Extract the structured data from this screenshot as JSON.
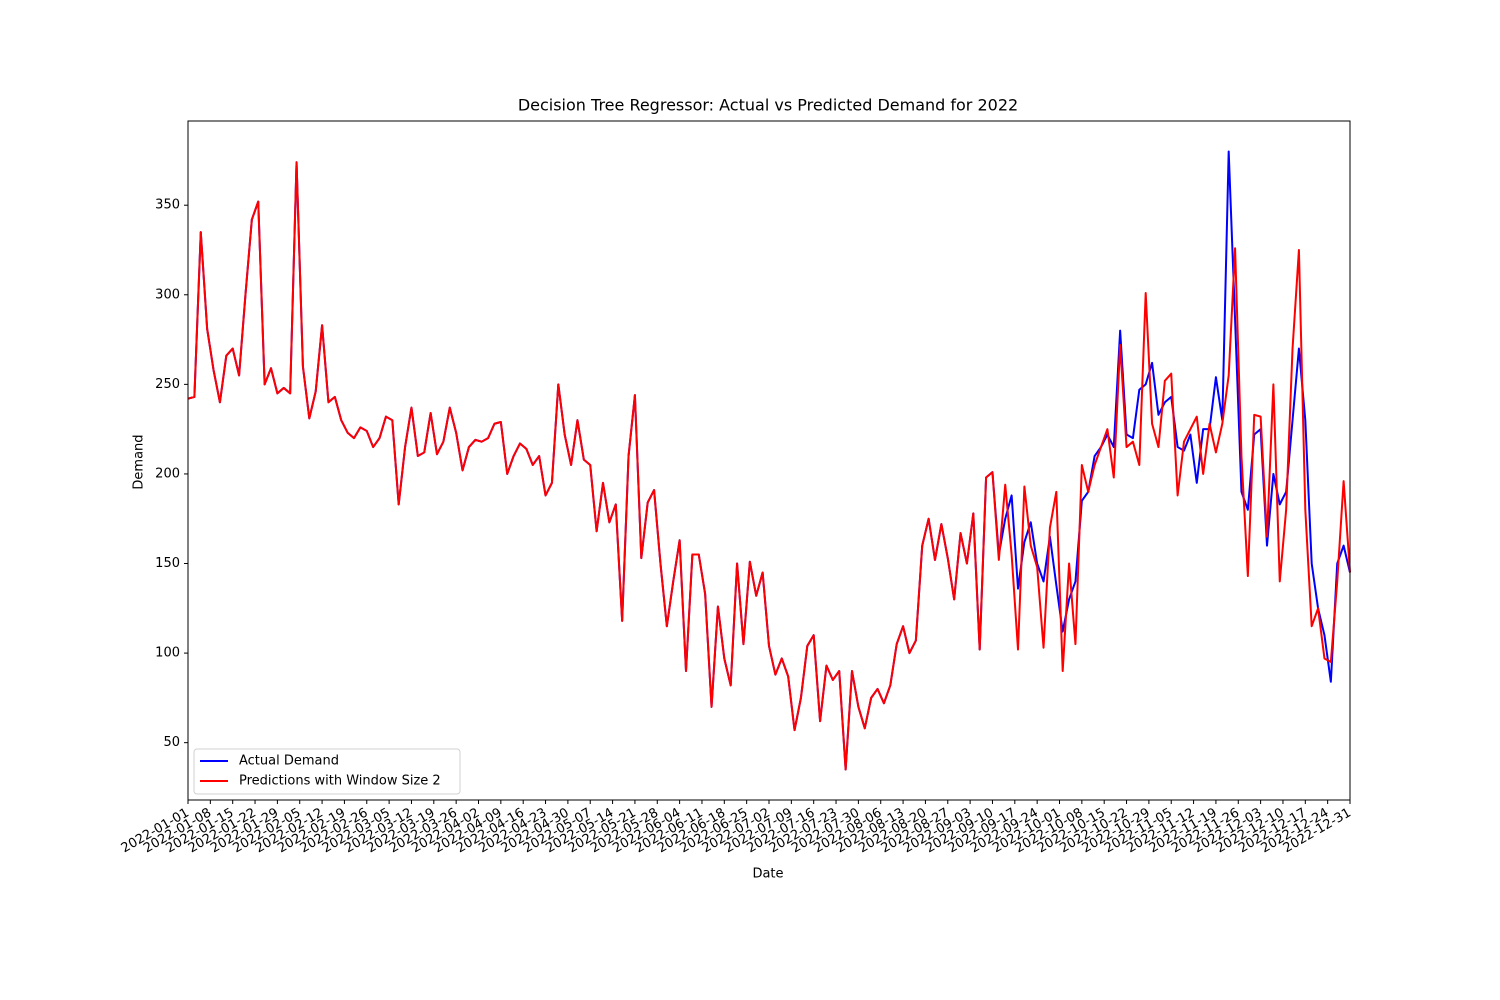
{
  "chart_data": {
    "type": "line",
    "title": "Decision Tree Regressor: Actual vs Predicted Demand for 2022",
    "x_label": "Date",
    "y_label": "Demand",
    "x": [
      "2022-01-01",
      "2022-01-03",
      "2022-01-05",
      "2022-01-07",
      "2022-01-09",
      "2022-01-11",
      "2022-01-13",
      "2022-01-15",
      "2022-01-17",
      "2022-01-19",
      "2022-01-21",
      "2022-01-23",
      "2022-01-25",
      "2022-01-27",
      "2022-01-29",
      "2022-01-31",
      "2022-02-02",
      "2022-02-04",
      "2022-02-06",
      "2022-02-08",
      "2022-02-10",
      "2022-02-12",
      "2022-02-14",
      "2022-02-16",
      "2022-02-18",
      "2022-02-20",
      "2022-02-22",
      "2022-02-24",
      "2022-02-26",
      "2022-02-28",
      "2022-03-02",
      "2022-03-04",
      "2022-03-06",
      "2022-03-08",
      "2022-03-10",
      "2022-03-12",
      "2022-03-14",
      "2022-03-16",
      "2022-03-18",
      "2022-03-20",
      "2022-03-22",
      "2022-03-24",
      "2022-03-26",
      "2022-03-28",
      "2022-03-30",
      "2022-04-01",
      "2022-04-03",
      "2022-04-05",
      "2022-04-07",
      "2022-04-09",
      "2022-04-11",
      "2022-04-13",
      "2022-04-15",
      "2022-04-17",
      "2022-04-19",
      "2022-04-21",
      "2022-04-23",
      "2022-04-25",
      "2022-04-27",
      "2022-04-29",
      "2022-05-01",
      "2022-05-03",
      "2022-05-05",
      "2022-05-07",
      "2022-05-09",
      "2022-05-11",
      "2022-05-13",
      "2022-05-15",
      "2022-05-17",
      "2022-05-19",
      "2022-05-21",
      "2022-05-23",
      "2022-05-25",
      "2022-05-27",
      "2022-05-29",
      "2022-05-31",
      "2022-06-02",
      "2022-06-04",
      "2022-06-06",
      "2022-06-08",
      "2022-06-10",
      "2022-06-12",
      "2022-06-14",
      "2022-06-16",
      "2022-06-18",
      "2022-06-20",
      "2022-06-22",
      "2022-06-24",
      "2022-06-26",
      "2022-06-28",
      "2022-06-30",
      "2022-07-02",
      "2022-07-04",
      "2022-07-06",
      "2022-07-08",
      "2022-07-10",
      "2022-07-12",
      "2022-07-14",
      "2022-07-16",
      "2022-07-18",
      "2022-07-20",
      "2022-07-22",
      "2022-07-24",
      "2022-07-26",
      "2022-07-28",
      "2022-07-30",
      "2022-08-01",
      "2022-08-03",
      "2022-08-05",
      "2022-08-07",
      "2022-08-09",
      "2022-08-11",
      "2022-08-13",
      "2022-08-15",
      "2022-08-17",
      "2022-08-19",
      "2022-08-21",
      "2022-08-23",
      "2022-08-25",
      "2022-08-27",
      "2022-08-29",
      "2022-08-31",
      "2022-09-02",
      "2022-09-04",
      "2022-09-06",
      "2022-09-08",
      "2022-09-10",
      "2022-09-12",
      "2022-09-14",
      "2022-09-16",
      "2022-09-18",
      "2022-09-20",
      "2022-09-22",
      "2022-09-24",
      "2022-09-26",
      "2022-09-28",
      "2022-09-30",
      "2022-10-02",
      "2022-10-04",
      "2022-10-06",
      "2022-10-08",
      "2022-10-10",
      "2022-10-12",
      "2022-10-14",
      "2022-10-16",
      "2022-10-18",
      "2022-10-20",
      "2022-10-22",
      "2022-10-24",
      "2022-10-26",
      "2022-10-28",
      "2022-10-30",
      "2022-11-01",
      "2022-11-03",
      "2022-11-05",
      "2022-11-07",
      "2022-11-09",
      "2022-11-11",
      "2022-11-13",
      "2022-11-15",
      "2022-11-17",
      "2022-11-19",
      "2022-11-21",
      "2022-11-23",
      "2022-11-25",
      "2022-11-27",
      "2022-11-29",
      "2022-12-01",
      "2022-12-03",
      "2022-12-05",
      "2022-12-07",
      "2022-12-09",
      "2022-12-11",
      "2022-12-13",
      "2022-12-15",
      "2022-12-17",
      "2022-12-19",
      "2022-12-21",
      "2022-12-23",
      "2022-12-25",
      "2022-12-27",
      "2022-12-29",
      "2022-12-31"
    ],
    "series": [
      {
        "name": "Actual Demand",
        "color": "#0000ff",
        "values": [
          242,
          243,
          335,
          281,
          258,
          240,
          266,
          270,
          255,
          300,
          342,
          352,
          250,
          259,
          245,
          248,
          245,
          374,
          260,
          231,
          246,
          283,
          240,
          243,
          230,
          223,
          220,
          226,
          224,
          215,
          220,
          232,
          230,
          183,
          215,
          237,
          210,
          212,
          234,
          211,
          218,
          237,
          223,
          202,
          215,
          219,
          218,
          220,
          228,
          229,
          200,
          210,
          217,
          214,
          205,
          210,
          188,
          195,
          250,
          222,
          205,
          230,
          208,
          205,
          168,
          195,
          173,
          183,
          118,
          210,
          244,
          153,
          184,
          191,
          150,
          115,
          140,
          163,
          90,
          155,
          155,
          133,
          70,
          126,
          97,
          82,
          150,
          105,
          151,
          132,
          145,
          104,
          88,
          97,
          87,
          57,
          75,
          104,
          110,
          62,
          93,
          85,
          90,
          35,
          90,
          70,
          58,
          75,
          80,
          72,
          82,
          105,
          115,
          100,
          107,
          160,
          175,
          152,
          172,
          153,
          130,
          167,
          150,
          178,
          102,
          198,
          201,
          155,
          175,
          188,
          136,
          162,
          173,
          150,
          140,
          165,
          138,
          112,
          130,
          140,
          185,
          190,
          210,
          215,
          222,
          215,
          280,
          222,
          220,
          247,
          250,
          262,
          233,
          240,
          243,
          215,
          213,
          222,
          195,
          225,
          225,
          254,
          230,
          380,
          286,
          190,
          180,
          222,
          225,
          160,
          200,
          183,
          190,
          230,
          270,
          230,
          150,
          125,
          110,
          84,
          150,
          160,
          145
        ]
      },
      {
        "name": "Predictions with Window Size 2",
        "color": "#ff0000",
        "values": [
          242,
          243,
          335,
          281,
          258,
          240,
          266,
          270,
          255,
          300,
          342,
          352,
          250,
          259,
          245,
          248,
          245,
          374,
          260,
          231,
          246,
          283,
          240,
          243,
          230,
          223,
          220,
          226,
          224,
          215,
          220,
          232,
          230,
          183,
          215,
          237,
          210,
          212,
          234,
          211,
          218,
          237,
          223,
          202,
          215,
          219,
          218,
          220,
          228,
          229,
          200,
          210,
          217,
          214,
          205,
          210,
          188,
          195,
          250,
          222,
          205,
          230,
          208,
          205,
          168,
          195,
          173,
          183,
          118,
          210,
          244,
          153,
          184,
          191,
          150,
          115,
          140,
          163,
          90,
          155,
          155,
          133,
          70,
          126,
          97,
          82,
          150,
          105,
          151,
          132,
          145,
          104,
          88,
          97,
          87,
          57,
          75,
          104,
          110,
          62,
          93,
          85,
          90,
          35,
          90,
          70,
          58,
          75,
          80,
          72,
          82,
          105,
          115,
          100,
          107,
          160,
          175,
          152,
          172,
          153,
          130,
          167,
          150,
          178,
          102,
          198,
          201,
          152,
          194,
          155,
          102,
          193,
          160,
          148,
          103,
          170,
          190,
          90,
          150,
          105,
          205,
          190,
          205,
          215,
          225,
          198,
          272,
          215,
          218,
          205,
          301,
          228,
          215,
          252,
          256,
          188,
          218,
          225,
          232,
          200,
          228,
          212,
          228,
          255,
          326,
          210,
          143,
          233,
          232,
          165,
          250,
          140,
          180,
          270,
          325,
          180,
          115,
          125,
          97,
          95,
          140,
          196,
          145
        ]
      }
    ],
    "xlim": [
      "2022-01-01",
      "2022-12-31"
    ],
    "xticks": [
      "2022-01-01",
      "2022-01-08",
      "2022-01-15",
      "2022-01-22",
      "2022-01-29",
      "2022-02-05",
      "2022-02-12",
      "2022-02-19",
      "2022-02-26",
      "2022-03-05",
      "2022-03-12",
      "2022-03-19",
      "2022-03-26",
      "2022-04-02",
      "2022-04-09",
      "2022-04-16",
      "2022-04-23",
      "2022-04-30",
      "2022-05-07",
      "2022-05-14",
      "2022-05-21",
      "2022-05-28",
      "2022-06-04",
      "2022-06-11",
      "2022-06-18",
      "2022-06-25",
      "2022-07-02",
      "2022-07-09",
      "2022-07-16",
      "2022-07-23",
      "2022-07-30",
      "2022-08-06",
      "2022-08-13",
      "2022-08-20",
      "2022-08-27",
      "2022-09-03",
      "2022-09-10",
      "2022-09-17",
      "2022-09-24",
      "2022-10-01",
      "2022-10-08",
      "2022-10-15",
      "2022-10-22",
      "2022-10-29",
      "2022-11-05",
      "2022-11-12",
      "2022-11-19",
      "2022-11-26",
      "2022-12-03",
      "2022-12-10",
      "2022-12-17",
      "2022-12-24",
      "2022-12-31"
    ],
    "ylim": [
      18,
      397
    ],
    "yticks": [
      50,
      100,
      150,
      200,
      250,
      300,
      350
    ],
    "legend": "lower left",
    "grid": false
  }
}
